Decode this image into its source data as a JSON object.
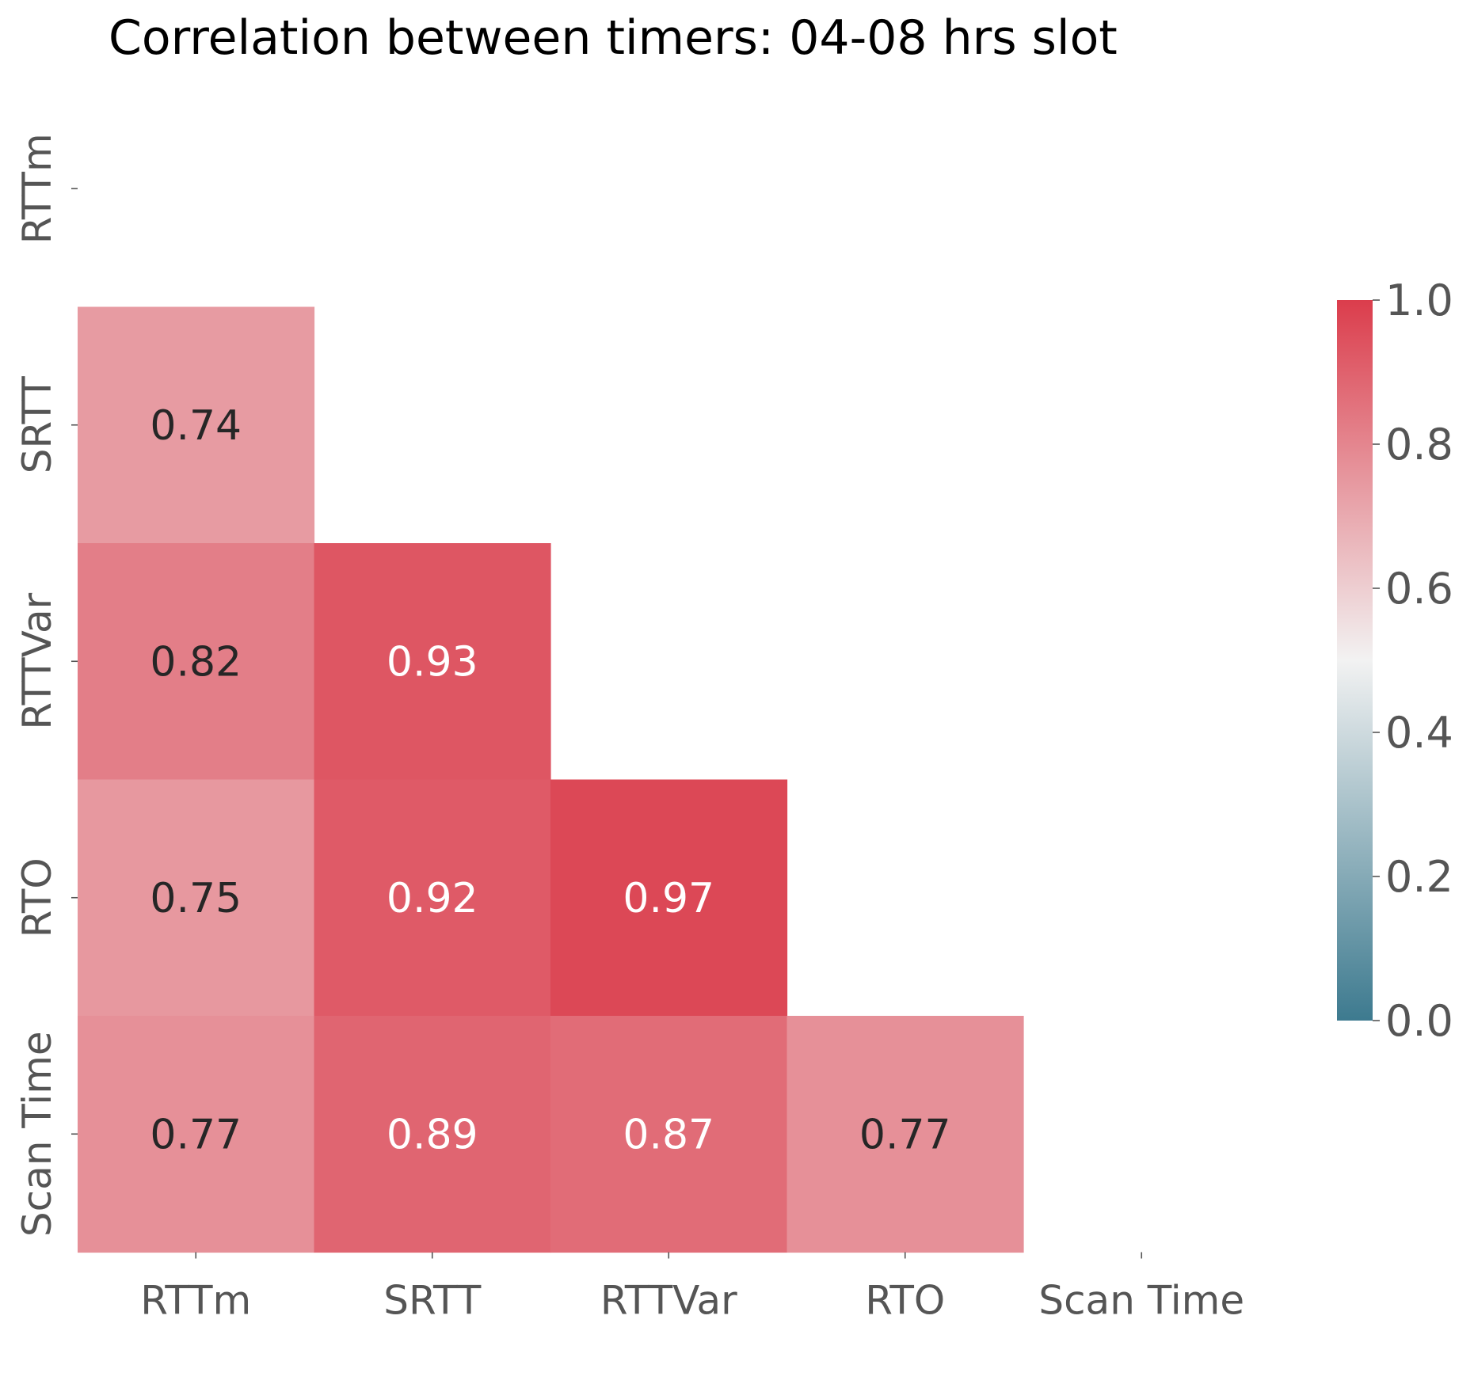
{
  "chart_data": {
    "type": "heatmap",
    "title": "Correlation between timers: 04-08 hrs slot",
    "xlabel": "",
    "ylabel": "",
    "x_labels": [
      "RTTm",
      "SRTT",
      "RTTVar",
      "RTO",
      "Scan Time"
    ],
    "y_labels": [
      "RTTm",
      "SRTT",
      "RTTVar",
      "RTO",
      "Scan Time"
    ],
    "mask": "upper triangle including diagonal",
    "cells": [
      {
        "row": "SRTT",
        "col": "RTTm",
        "value": 0.74,
        "label": "0.74"
      },
      {
        "row": "RTTVar",
        "col": "RTTm",
        "value": 0.82,
        "label": "0.82"
      },
      {
        "row": "RTTVar",
        "col": "SRTT",
        "value": 0.93,
        "label": "0.93"
      },
      {
        "row": "RTO",
        "col": "RTTm",
        "value": 0.75,
        "label": "0.75"
      },
      {
        "row": "RTO",
        "col": "SRTT",
        "value": 0.92,
        "label": "0.92"
      },
      {
        "row": "RTO",
        "col": "RTTVar",
        "value": 0.97,
        "label": "0.97"
      },
      {
        "row": "Scan Time",
        "col": "RTTm",
        "value": 0.77,
        "label": "0.77"
      },
      {
        "row": "Scan Time",
        "col": "SRTT",
        "value": 0.89,
        "label": "0.89"
      },
      {
        "row": "Scan Time",
        "col": "RTTVar",
        "value": 0.87,
        "label": "0.87"
      },
      {
        "row": "Scan Time",
        "col": "RTO",
        "value": 0.77,
        "label": "0.77"
      }
    ],
    "colorbar": {
      "range": [
        0.0,
        1.0
      ],
      "ticks": [
        "0.0",
        "0.2",
        "0.4",
        "0.6",
        "0.8",
        "1.0"
      ],
      "low_color": "#3d7a8f",
      "mid_color": "#f2f2f2",
      "high_color": "#db3d4c",
      "center": 0.5
    },
    "grid": false
  }
}
